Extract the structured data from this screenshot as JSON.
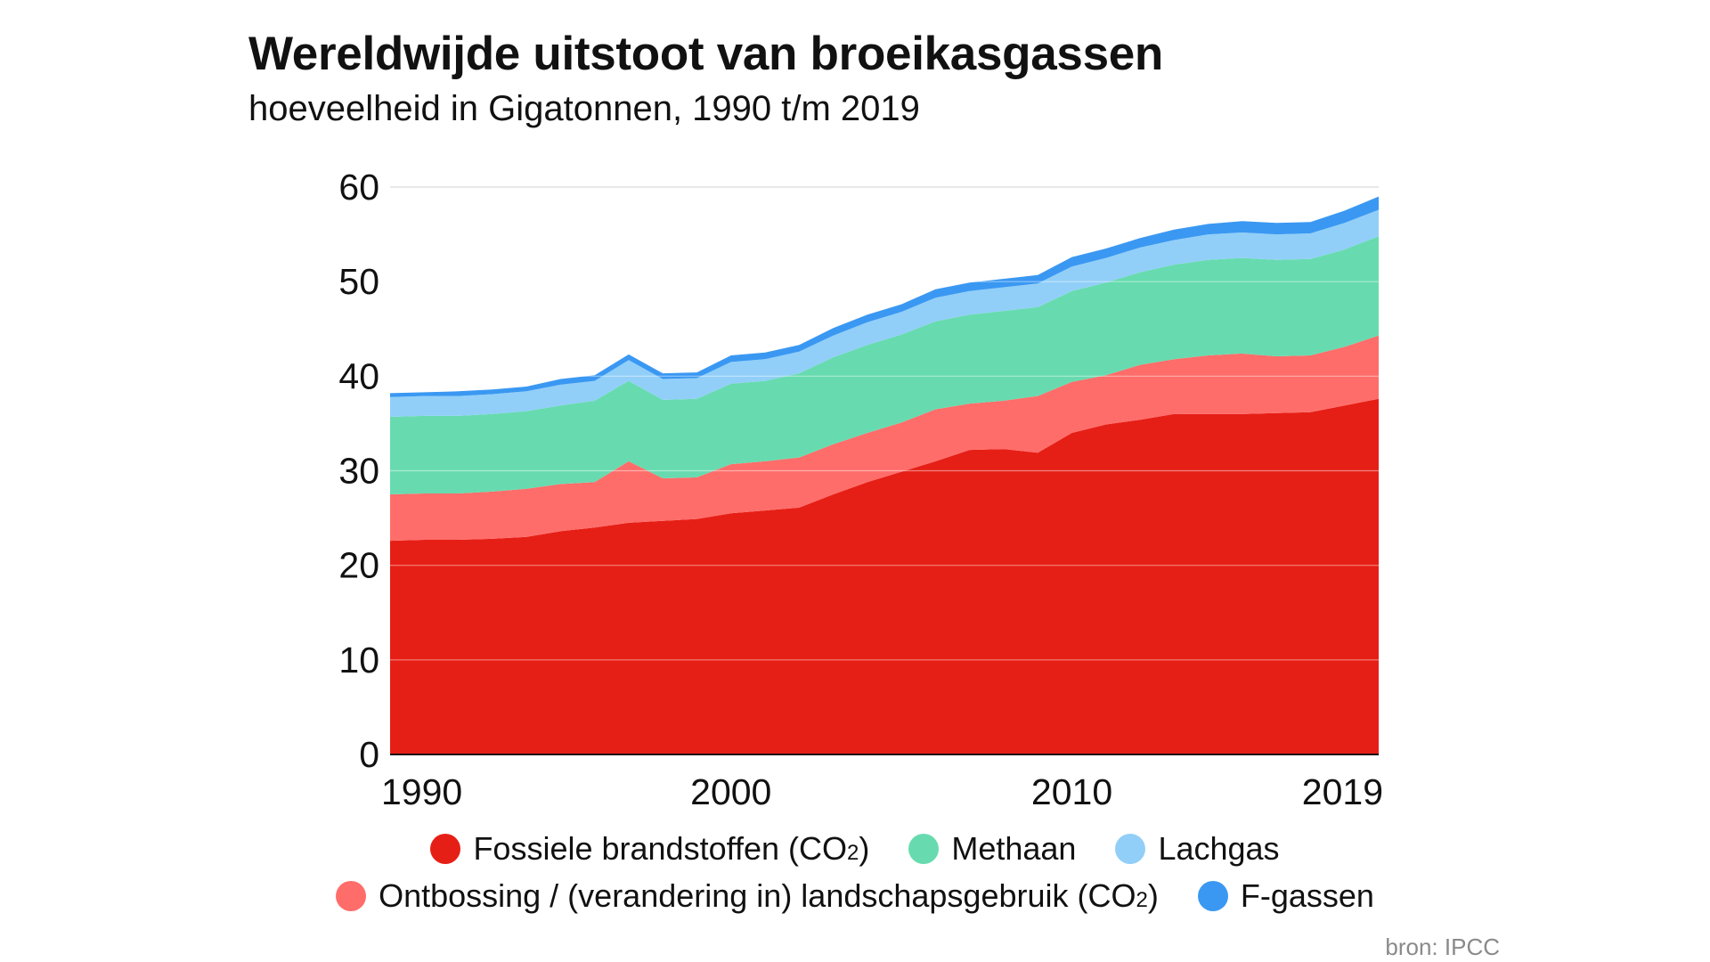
{
  "title": "Wereldwijde uitstoot van broeikasgassen",
  "subtitle": "hoeveelheid in Gigatonnen, 1990 t/m 2019",
  "source": "bron: IPCC",
  "chart_data": {
    "type": "area",
    "stacked": true,
    "x": [
      1990,
      1991,
      1992,
      1993,
      1994,
      1995,
      1996,
      1997,
      1998,
      1999,
      2000,
      2001,
      2002,
      2003,
      2004,
      2005,
      2006,
      2007,
      2008,
      2009,
      2010,
      2011,
      2012,
      2013,
      2014,
      2015,
      2016,
      2017,
      2018,
      2019
    ],
    "xlim": [
      1990,
      2019
    ],
    "x_ticks": [
      1990,
      2000,
      2010,
      2019
    ],
    "ylim": [
      0,
      60
    ],
    "y_ticks": [
      0,
      10,
      20,
      30,
      40,
      50,
      60
    ],
    "grid": true,
    "legend_position": "bottom",
    "series": [
      {
        "name": "Fossiele brandstoffen (CO2)",
        "legend_text": "Fossiele brandstoffen (CO",
        "legend_sub": "2",
        "legend_suffix": ")",
        "color": "#e61f16",
        "values": [
          22.6,
          22.7,
          22.7,
          22.8,
          23.0,
          23.6,
          24.0,
          24.5,
          24.7,
          24.9,
          25.5,
          25.8,
          26.1,
          27.5,
          28.8,
          29.9,
          31.0,
          32.2,
          32.3,
          31.9,
          34.0,
          34.9,
          35.4,
          36.0,
          36.0,
          36.0,
          36.1,
          36.2,
          36.9,
          37.6
        ]
      },
      {
        "name": "Ontbossing / (verandering in) landschapsgebruik (CO2)",
        "legend_text": "Ontbossing / (verandering in) landschapsgebruik (CO",
        "legend_sub": "2",
        "legend_suffix": ")",
        "color": "#ff6d6a",
        "values": [
          4.9,
          4.9,
          4.9,
          5.0,
          5.1,
          5.0,
          4.8,
          6.5,
          4.5,
          4.4,
          5.2,
          5.2,
          5.3,
          5.3,
          5.2,
          5.2,
          5.5,
          4.9,
          5.1,
          6.0,
          5.4,
          5.2,
          5.8,
          5.8,
          6.2,
          6.4,
          6.0,
          6.0,
          6.2,
          6.7
        ]
      },
      {
        "name": "Methaan",
        "legend_text": "Methaan",
        "legend_sub": "",
        "legend_suffix": "",
        "color": "#67dbaf",
        "values": [
          8.2,
          8.2,
          8.2,
          8.2,
          8.2,
          8.3,
          8.6,
          8.5,
          8.3,
          8.3,
          8.5,
          8.5,
          8.9,
          9.2,
          9.3,
          9.3,
          9.3,
          9.4,
          9.5,
          9.4,
          9.6,
          9.8,
          9.8,
          10.0,
          10.1,
          10.1,
          10.2,
          10.2,
          10.3,
          10.5
        ]
      },
      {
        "name": "Lachgas",
        "legend_text": "Lachgas",
        "legend_sub": "",
        "legend_suffix": "",
        "color": "#91cff8",
        "values": [
          2.1,
          2.1,
          2.1,
          2.1,
          2.1,
          2.2,
          2.1,
          2.2,
          2.2,
          2.2,
          2.3,
          2.3,
          2.3,
          2.3,
          2.4,
          2.4,
          2.5,
          2.5,
          2.5,
          2.5,
          2.6,
          2.6,
          2.6,
          2.6,
          2.7,
          2.7,
          2.7,
          2.7,
          2.8,
          2.8
        ]
      },
      {
        "name": "F-gassen",
        "legend_text": "F-gassen",
        "legend_sub": "",
        "legend_suffix": "",
        "color": "#3a98f2",
        "values": [
          0.4,
          0.4,
          0.5,
          0.5,
          0.5,
          0.6,
          0.6,
          0.6,
          0.6,
          0.6,
          0.7,
          0.7,
          0.7,
          0.8,
          0.8,
          0.8,
          0.9,
          0.9,
          0.9,
          0.9,
          1.0,
          1.0,
          1.0,
          1.1,
          1.1,
          1.2,
          1.2,
          1.2,
          1.3,
          1.4
        ]
      }
    ]
  }
}
